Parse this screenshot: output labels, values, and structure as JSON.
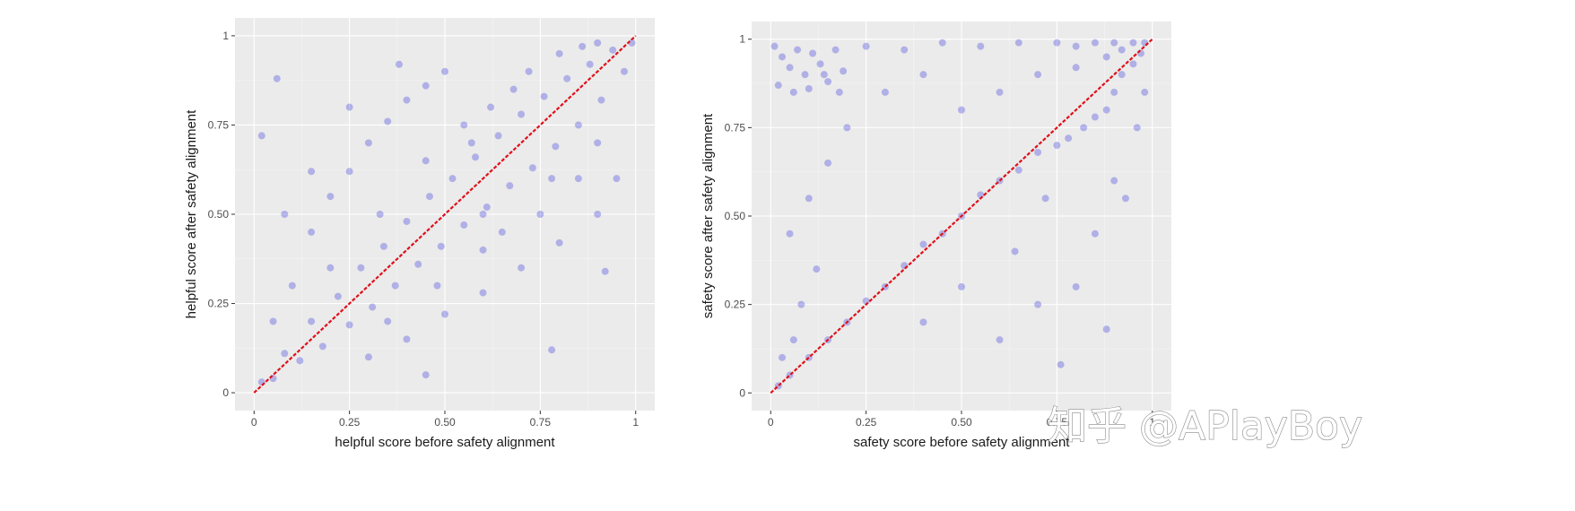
{
  "colors": {
    "panel_background": "#ebebeb",
    "grid_major": "#ffffff",
    "points": "#1a1adc",
    "diagonal": "#e0101a",
    "tick_label": "#4d4d4d"
  },
  "watermark": {
    "text": "知乎 @APlayBoy"
  },
  "chart_data": [
    {
      "type": "scatter",
      "xlabel": "helpful score before safety alignment",
      "ylabel": "helpful score after safety alignment",
      "xlim": [
        0,
        1
      ],
      "ylim": [
        0,
        1
      ],
      "x_ticks": [
        0,
        0.25,
        0.5,
        0.75,
        1
      ],
      "x_tick_labels": [
        "0",
        "0.25",
        "0.50",
        "0.75",
        "1"
      ],
      "y_ticks": [
        0,
        0.25,
        0.5,
        0.75,
        1
      ],
      "y_tick_labels": [
        "0",
        "0.25",
        "0.50",
        "0.75",
        "1"
      ],
      "grid": true,
      "reference_line": {
        "from": [
          0,
          0
        ],
        "to": [
          1,
          1
        ],
        "style": "dashed"
      },
      "points": [
        [
          0.02,
          0.03
        ],
        [
          0.05,
          0.04
        ],
        [
          0.08,
          0.11
        ],
        [
          0.12,
          0.09
        ],
        [
          0.15,
          0.2
        ],
        [
          0.18,
          0.13
        ],
        [
          0.22,
          0.27
        ],
        [
          0.25,
          0.19
        ],
        [
          0.28,
          0.35
        ],
        [
          0.31,
          0.24
        ],
        [
          0.34,
          0.41
        ],
        [
          0.37,
          0.3
        ],
        [
          0.4,
          0.48
        ],
        [
          0.43,
          0.36
        ],
        [
          0.46,
          0.55
        ],
        [
          0.49,
          0.41
        ],
        [
          0.52,
          0.6
        ],
        [
          0.55,
          0.47
        ],
        [
          0.58,
          0.66
        ],
        [
          0.61,
          0.52
        ],
        [
          0.64,
          0.72
        ],
        [
          0.67,
          0.58
        ],
        [
          0.7,
          0.78
        ],
        [
          0.73,
          0.63
        ],
        [
          0.76,
          0.83
        ],
        [
          0.79,
          0.69
        ],
        [
          0.82,
          0.88
        ],
        [
          0.85,
          0.75
        ],
        [
          0.88,
          0.92
        ],
        [
          0.91,
          0.82
        ],
        [
          0.94,
          0.96
        ],
        [
          0.97,
          0.9
        ],
        [
          0.99,
          0.98
        ],
        [
          0.1,
          0.3
        ],
        [
          0.15,
          0.45
        ],
        [
          0.2,
          0.55
        ],
        [
          0.25,
          0.62
        ],
        [
          0.3,
          0.7
        ],
        [
          0.35,
          0.76
        ],
        [
          0.4,
          0.82
        ],
        [
          0.45,
          0.86
        ],
        [
          0.5,
          0.9
        ],
        [
          0.3,
          0.1
        ],
        [
          0.4,
          0.15
        ],
        [
          0.5,
          0.22
        ],
        [
          0.6,
          0.28
        ],
        [
          0.7,
          0.35
        ],
        [
          0.8,
          0.42
        ],
        [
          0.9,
          0.5
        ],
        [
          0.95,
          0.6
        ],
        [
          0.55,
          0.75
        ],
        [
          0.62,
          0.8
        ],
        [
          0.68,
          0.85
        ],
        [
          0.72,
          0.9
        ],
        [
          0.8,
          0.95
        ],
        [
          0.86,
          0.97
        ],
        [
          0.9,
          0.98
        ],
        [
          0.6,
          0.4
        ],
        [
          0.65,
          0.45
        ],
        [
          0.75,
          0.5
        ],
        [
          0.85,
          0.6
        ],
        [
          0.9,
          0.7
        ],
        [
          0.2,
          0.35
        ],
        [
          0.33,
          0.5
        ],
        [
          0.45,
          0.65
        ],
        [
          0.57,
          0.7
        ],
        [
          0.35,
          0.2
        ],
        [
          0.48,
          0.3
        ],
        [
          0.6,
          0.5
        ],
        [
          0.78,
          0.6
        ],
        [
          0.05,
          0.2
        ],
        [
          0.08,
          0.5
        ],
        [
          0.02,
          0.72
        ],
        [
          0.06,
          0.88
        ],
        [
          0.45,
          0.05
        ],
        [
          0.78,
          0.12
        ],
        [
          0.92,
          0.34
        ],
        [
          0.15,
          0.62
        ],
        [
          0.25,
          0.8
        ],
        [
          0.38,
          0.92
        ]
      ]
    },
    {
      "type": "scatter",
      "xlabel": "safety score before safety alignment",
      "ylabel": "safety score after safety alignment",
      "xlim": [
        0,
        1
      ],
      "ylim": [
        0,
        1
      ],
      "x_ticks": [
        0,
        0.25,
        0.5,
        0.75,
        1
      ],
      "x_tick_labels": [
        "0",
        "0.25",
        "0.50",
        "0.75",
        "1"
      ],
      "y_ticks": [
        0,
        0.25,
        0.5,
        0.75,
        1
      ],
      "y_tick_labels": [
        "0",
        "0.25",
        "0.50",
        "0.75",
        "1"
      ],
      "grid": true,
      "reference_line": {
        "from": [
          0,
          0
        ],
        "to": [
          1,
          1
        ],
        "style": "dashed"
      },
      "points": [
        [
          0.01,
          0.98
        ],
        [
          0.03,
          0.95
        ],
        [
          0.05,
          0.92
        ],
        [
          0.07,
          0.97
        ],
        [
          0.09,
          0.9
        ],
        [
          0.11,
          0.96
        ],
        [
          0.13,
          0.93
        ],
        [
          0.15,
          0.88
        ],
        [
          0.17,
          0.97
        ],
        [
          0.19,
          0.91
        ],
        [
          0.02,
          0.87
        ],
        [
          0.06,
          0.85
        ],
        [
          0.1,
          0.86
        ],
        [
          0.14,
          0.9
        ],
        [
          0.18,
          0.85
        ],
        [
          0.25,
          0.98
        ],
        [
          0.35,
          0.97
        ],
        [
          0.45,
          0.99
        ],
        [
          0.55,
          0.98
        ],
        [
          0.65,
          0.99
        ],
        [
          0.75,
          0.99
        ],
        [
          0.8,
          0.98
        ],
        [
          0.85,
          0.99
        ],
        [
          0.9,
          0.99
        ],
        [
          0.95,
          0.99
        ],
        [
          0.98,
          0.99
        ],
        [
          0.97,
          0.96
        ],
        [
          0.95,
          0.93
        ],
        [
          0.92,
          0.9
        ],
        [
          0.9,
          0.85
        ],
        [
          0.88,
          0.8
        ],
        [
          0.85,
          0.78
        ],
        [
          0.82,
          0.75
        ],
        [
          0.78,
          0.72
        ],
        [
          0.75,
          0.7
        ],
        [
          0.7,
          0.68
        ],
        [
          0.65,
          0.63
        ],
        [
          0.6,
          0.6
        ],
        [
          0.55,
          0.56
        ],
        [
          0.5,
          0.5
        ],
        [
          0.45,
          0.45
        ],
        [
          0.4,
          0.42
        ],
        [
          0.35,
          0.36
        ],
        [
          0.3,
          0.3
        ],
        [
          0.25,
          0.26
        ],
        [
          0.2,
          0.2
        ],
        [
          0.15,
          0.15
        ],
        [
          0.1,
          0.1
        ],
        [
          0.05,
          0.05
        ],
        [
          0.02,
          0.02
        ],
        [
          0.03,
          0.1
        ],
        [
          0.06,
          0.15
        ],
        [
          0.08,
          0.25
        ],
        [
          0.12,
          0.35
        ],
        [
          0.05,
          0.45
        ],
        [
          0.1,
          0.55
        ],
        [
          0.15,
          0.65
        ],
        [
          0.2,
          0.75
        ],
        [
          0.3,
          0.85
        ],
        [
          0.4,
          0.9
        ],
        [
          0.5,
          0.8
        ],
        [
          0.6,
          0.85
        ],
        [
          0.7,
          0.9
        ],
        [
          0.8,
          0.92
        ],
        [
          0.88,
          0.95
        ],
        [
          0.92,
          0.97
        ],
        [
          0.4,
          0.2
        ],
        [
          0.5,
          0.3
        ],
        [
          0.6,
          0.15
        ],
        [
          0.7,
          0.25
        ],
        [
          0.8,
          0.3
        ],
        [
          0.85,
          0.45
        ],
        [
          0.9,
          0.6
        ],
        [
          0.93,
          0.55
        ],
        [
          0.96,
          0.75
        ],
        [
          0.98,
          0.85
        ],
        [
          0.76,
          0.08
        ],
        [
          0.88,
          0.18
        ],
        [
          0.64,
          0.4
        ],
        [
          0.72,
          0.55
        ]
      ]
    }
  ]
}
